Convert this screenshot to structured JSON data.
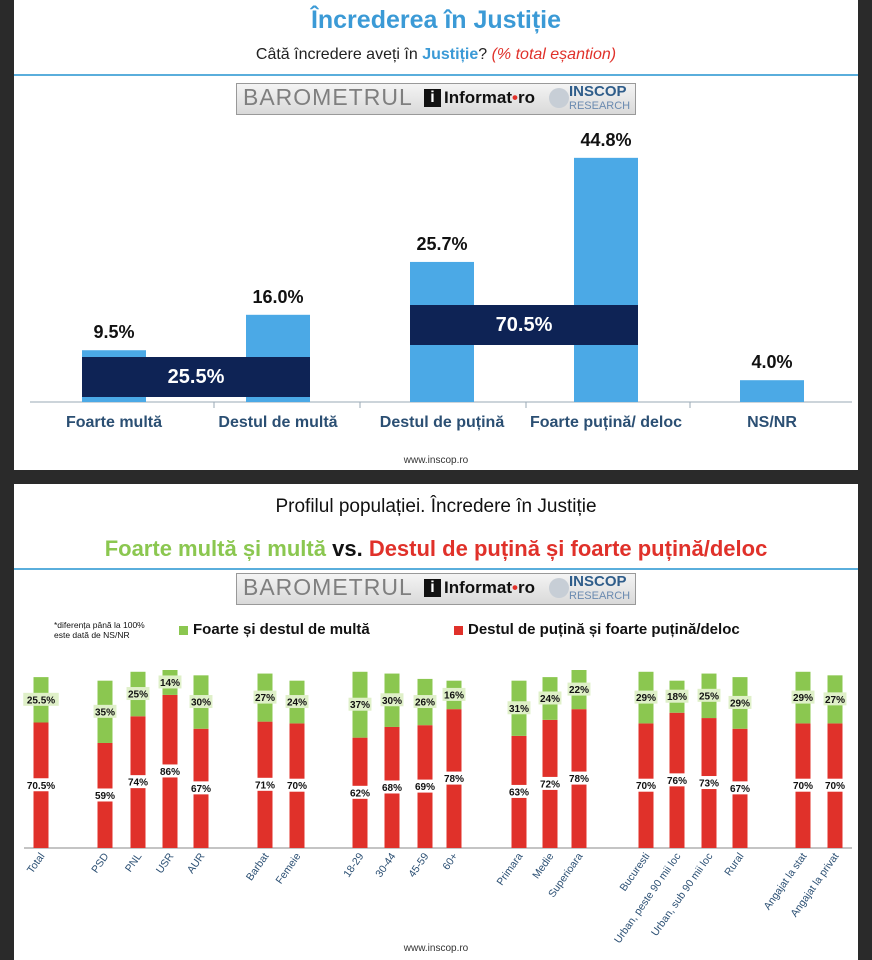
{
  "top": {
    "title": "Încrederea în Justiție",
    "question_prefix": "Câtă încredere aveți în",
    "question_highlight": "Justiție",
    "question_suffix": "?",
    "question_note": "(% total eșantion)",
    "website": "www.inscop.ro"
  },
  "bottom": {
    "title": "Profilul populației. Încredere în Justiție",
    "subtitle_green": "Foarte multă și multă",
    "subtitle_vs": "vs.",
    "subtitle_red": "Destul de puțină și foarte puțină/deloc",
    "note_line1": "*diferența până la 100%",
    "note_line2": "este dată de NS/NR",
    "website": "www.inscop.ro"
  },
  "logo": {
    "barometru": "BAROMETRUL",
    "informat_mark": "i",
    "informat": "Informat",
    "informat_dot": "•",
    "informat_ro": "ro",
    "inscop": "INSCOP",
    "research": "RESEARCH"
  },
  "colors": {
    "blue": "#4ba9e6",
    "navy": "#0e2355",
    "green": "#8bc750",
    "red": "#e0312a",
    "title_blue": "#3b9ad6"
  },
  "chart_data": [
    {
      "type": "bar",
      "title": "Încrederea în Justiție",
      "categories": [
        "Foarte multă",
        "Destul de multă",
        "Destul de puțină",
        "Foarte puțină/ deloc",
        "NS/NR"
      ],
      "values": [
        9.5,
        16.0,
        25.7,
        44.8,
        4.0
      ],
      "labels": [
        "9.5%",
        "16.0%",
        "25.7%",
        "44.8%",
        "4.0%"
      ],
      "groups": [
        {
          "label": "25.5%",
          "value": 25.5
        },
        {
          "label": "70.5%",
          "value": 70.5
        }
      ],
      "ylim": [
        0,
        50
      ]
    },
    {
      "type": "bar",
      "title": "Profilul populației. Încredere în Justiție",
      "categories": [
        "Total",
        "PSD",
        "PNL",
        "USR",
        "AUR",
        "Barbat",
        "Femeie",
        "18-29",
        "30-44",
        "45-59",
        "60+",
        "Primara",
        "Medie",
        "Superioara",
        "Bucuresti",
        "Urban, peste 90 mii loc",
        "Urban, sub 90 mii loc",
        "Rural",
        "Angajat la stat",
        "Angajat la privat"
      ],
      "series": [
        {
          "name": "Foarte și destul de multă",
          "values": [
            25.5,
            35,
            25,
            14,
            30,
            27,
            24,
            37,
            30,
            26,
            16,
            31,
            24,
            22,
            29,
            18,
            25,
            29,
            29,
            27
          ],
          "labels": [
            "25.5%",
            "35%",
            "25%",
            "14%",
            "30%",
            "27%",
            "24%",
            "37%",
            "30%",
            "26%",
            "16%",
            "31%",
            "24%",
            "22%",
            "29%",
            "18%",
            "25%",
            "29%",
            "29%",
            "27%"
          ]
        },
        {
          "name": "Destul de puțină și foarte puțină/deloc",
          "values": [
            70.5,
            59,
            74,
            86,
            67,
            71,
            70,
            62,
            68,
            69,
            78,
            63,
            72,
            78,
            70,
            76,
            73,
            67,
            70,
            70
          ],
          "labels": [
            "70.5%",
            "59%",
            "74%",
            "86%",
            "67%",
            "71%",
            "70%",
            "62%",
            "68%",
            "69%",
            "78%",
            "63%",
            "72%",
            "78%",
            "70%",
            "76%",
            "73%",
            "67%",
            "70%",
            "70%"
          ]
        }
      ],
      "stacked": true,
      "ylim": [
        0,
        100
      ]
    }
  ]
}
